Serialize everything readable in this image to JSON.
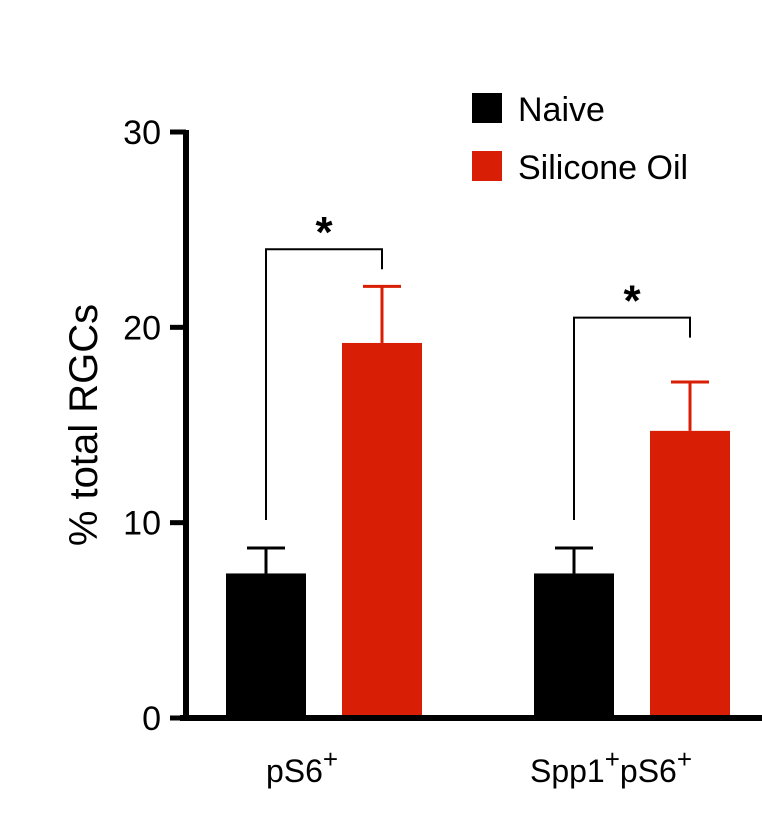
{
  "chart_data": {
    "type": "bar",
    "title": "",
    "xlabel": "",
    "ylabel": "% total RGCs",
    "ylim": [
      0,
      30
    ],
    "yticks": [
      0,
      10,
      20,
      30
    ],
    "grid": false,
    "legend_position": "top-right",
    "categories": [
      {
        "main": "pS6",
        "sup": "+"
      },
      {
        "main": "Spp1",
        "sup": "+",
        "main2": "pS6",
        "sup2": "+"
      }
    ],
    "series": [
      {
        "name": "Naive",
        "color": "#000000",
        "values": [
          7.4,
          7.4
        ],
        "error_upper": [
          8.7,
          8.7
        ]
      },
      {
        "name": "Silicone Oil",
        "color": "#d81e05",
        "values": [
          19.2,
          14.7
        ],
        "error_upper": [
          22.1,
          17.2
        ]
      }
    ],
    "significance": [
      {
        "category_index": 0,
        "label": "*",
        "bracket_y": 24.0
      },
      {
        "category_index": 1,
        "label": "*",
        "bracket_y": 20.5
      }
    ]
  }
}
